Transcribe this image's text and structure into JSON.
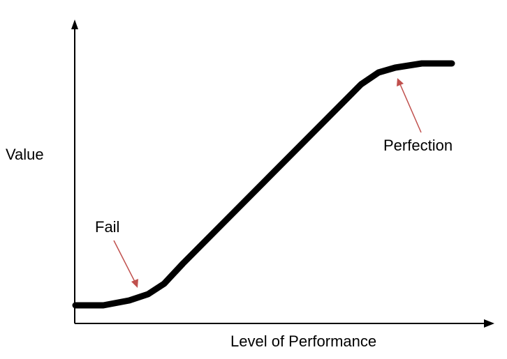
{
  "diagram": {
    "y_axis_label": "Value",
    "x_axis_label": "Level of Performance",
    "annotations": {
      "fail": "Fail",
      "perfection": "Perfection"
    }
  },
  "colors": {
    "curve": "#000000",
    "axes": "#000000",
    "annotation_arrow": "#c0504d",
    "text": "#000000"
  }
}
